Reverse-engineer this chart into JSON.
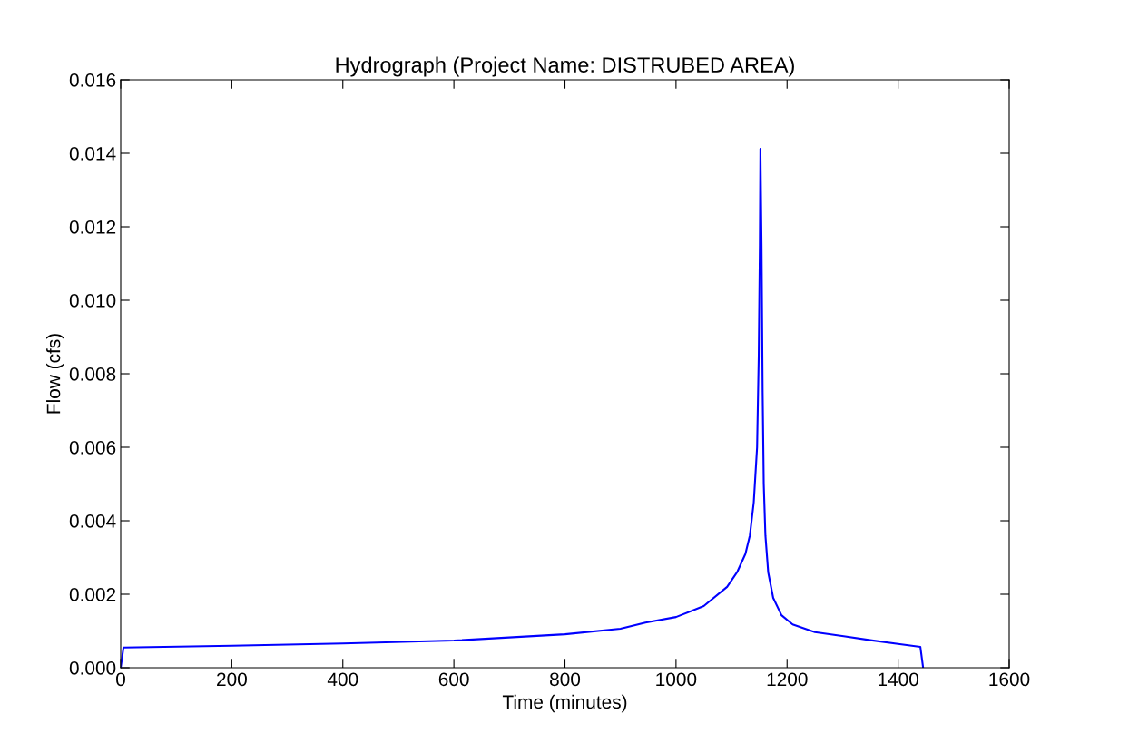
{
  "chart_data": {
    "type": "line",
    "title": "Hydrograph (Project Name: DISTRUBED AREA)",
    "xlabel": "Time (minutes)",
    "ylabel": "Flow (cfs)",
    "xlim": [
      0,
      1600
    ],
    "xticks": [
      0,
      200,
      400,
      600,
      800,
      1000,
      1200,
      1400,
      1600
    ],
    "ylim": [
      0,
      0.016
    ],
    "yticks": [
      {
        "value": 0,
        "label": "0.000"
      },
      {
        "value": 0.002,
        "label": "0.002"
      },
      {
        "value": 0.004,
        "label": "0.004"
      },
      {
        "value": 0.006,
        "label": "0.006"
      },
      {
        "value": 0.008,
        "label": "0.008"
      },
      {
        "value": 0.01,
        "label": "0.010"
      },
      {
        "value": 0.012,
        "label": "0.012"
      },
      {
        "value": 0.014,
        "label": "0.014"
      },
      {
        "value": 0.016,
        "label": "0.016"
      }
    ],
    "grid": false,
    "legend": false,
    "series": [
      {
        "color": "#0000ff",
        "x": [
          0,
          5,
          200,
          400,
          600,
          800,
          900,
          945,
          1000,
          1050,
          1092,
          1110,
          1125,
          1133,
          1140,
          1146,
          1149,
          1151,
          1152,
          1154,
          1156,
          1158,
          1161,
          1166,
          1175,
          1190,
          1210,
          1250,
          1302,
          1350,
          1400,
          1440,
          1445
        ],
        "values": [
          0,
          0.00055,
          0.0006,
          0.00066,
          0.00074,
          0.00091,
          0.00106,
          0.00123,
          0.00138,
          0.00168,
          0.0022,
          0.0026,
          0.0031,
          0.0036,
          0.0045,
          0.006,
          0.0085,
          0.0115,
          0.01412,
          0.0115,
          0.0075,
          0.005,
          0.0036,
          0.0026,
          0.0019,
          0.00143,
          0.00118,
          0.00097,
          0.00086,
          0.00075,
          0.00065,
          0.00057,
          0
        ]
      }
    ]
  }
}
